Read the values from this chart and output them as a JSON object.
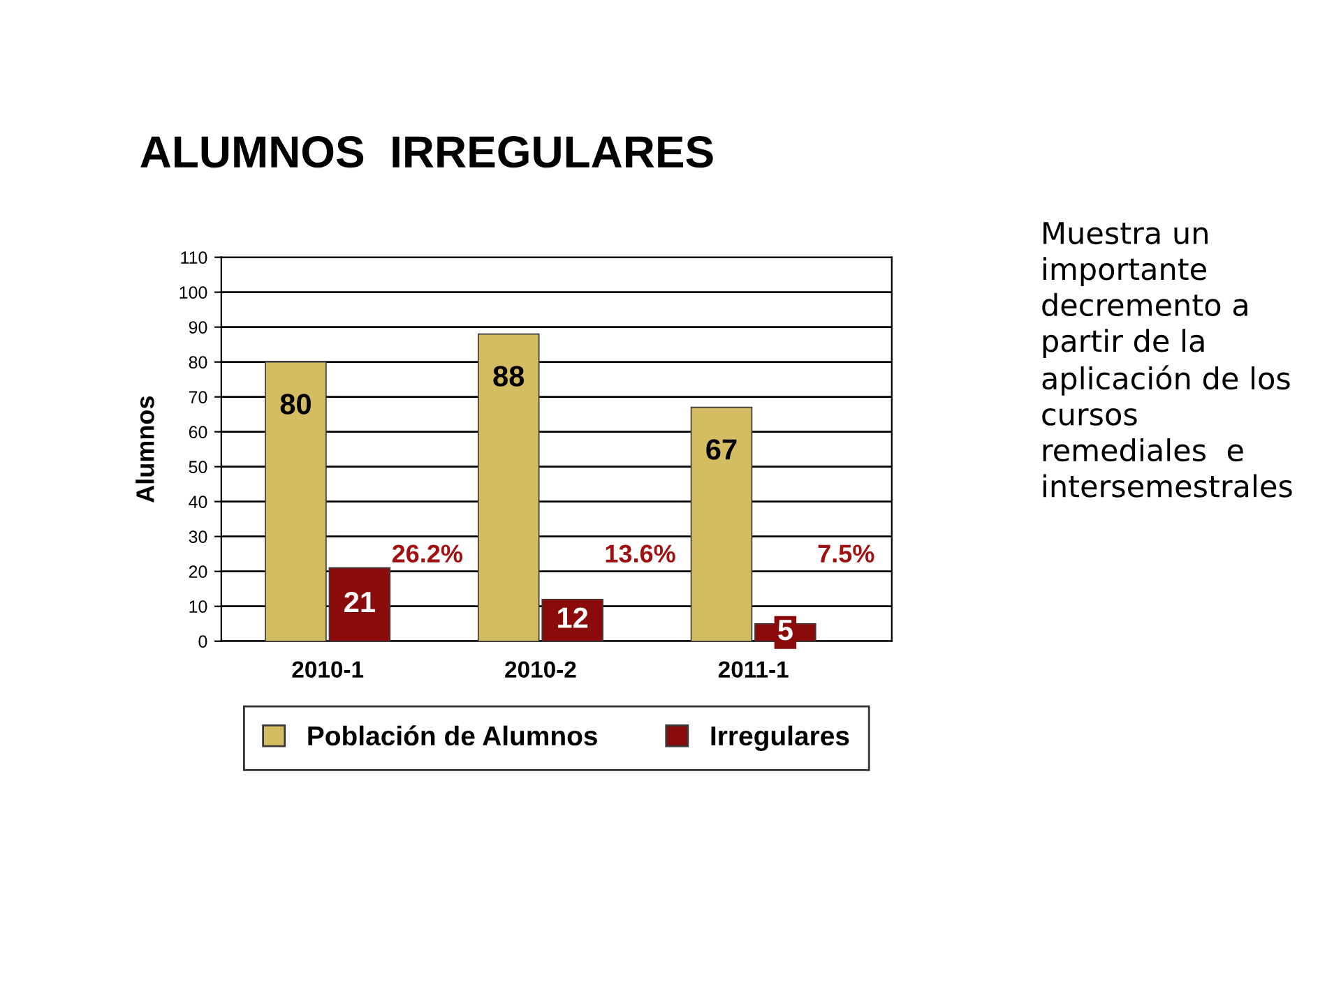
{
  "chart_data": {
    "type": "bar",
    "title": "ALUMNOS  IRREGULARES",
    "ylabel": "Alumnos",
    "categories": [
      "2010-1",
      "2010-2",
      "2011-1"
    ],
    "series": [
      {
        "name": "Población de Alumnos",
        "color": "#d4bc62",
        "values": [
          80,
          88,
          67
        ]
      },
      {
        "name": "Irregulares",
        "color": "#8b0a0a",
        "values": [
          21,
          12,
          5
        ]
      }
    ],
    "data_labels": true,
    "annotations": [
      {
        "text": "26.2%",
        "x": "2010-1",
        "y": 20
      },
      {
        "text": "13.6%",
        "x": "2010-2",
        "y": 20
      },
      {
        "text": "7.5%",
        "x": "2011-1",
        "y": 20
      },
      "Muestra un\nimportante\ndecremento a\npartir de la\naplicación de los\ncursos\nremediales  e\nintersemestrales"
    ],
    "ylim": [
      0,
      110
    ],
    "yticks": [
      0,
      10,
      20,
      30,
      40,
      50,
      60,
      70,
      80,
      90,
      100,
      110
    ],
    "grid": "y",
    "legend": "bottom"
  }
}
